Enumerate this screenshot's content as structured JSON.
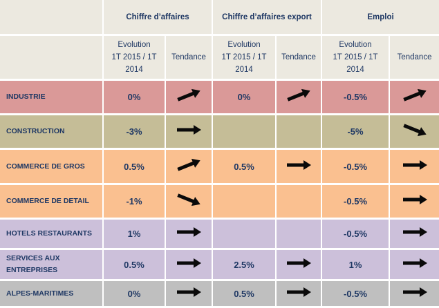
{
  "header": {
    "group1": "Chiffre d’affaires",
    "group2": "Chiffre d’affaires export",
    "group3": "Emploi"
  },
  "subheader": {
    "evolution_l1": "Evolution",
    "evolution_l2": "1T 2015 / 1T",
    "evolution_l3": "2014",
    "tendance": "Tendance"
  },
  "rows": [
    {
      "label": "INDUSTRIE",
      "ca": "0%",
      "ca_trend": "up",
      "export": "0%",
      "export_trend": "up",
      "emploi": "-0.5%",
      "emploi_trend": "up"
    },
    {
      "label": "CONSTRUCTION",
      "ca": "-3%",
      "ca_trend": "flat",
      "export": "",
      "export_trend": "none",
      "emploi": "-5%",
      "emploi_trend": "down"
    },
    {
      "label": "COMMERCE DE GROS",
      "ca": "0.5%",
      "ca_trend": "up",
      "export": "0.5%",
      "export_trend": "flat",
      "emploi": "-0.5%",
      "emploi_trend": "flat"
    },
    {
      "label": "COMMERCE DE DETAIL",
      "ca": "-1%",
      "ca_trend": "down",
      "export": "",
      "export_trend": "none",
      "emploi": "-0.5%",
      "emploi_trend": "flat"
    },
    {
      "label": "HOTELS RESTAURANTS",
      "ca": "1%",
      "ca_trend": "flat",
      "export": "",
      "export_trend": "none",
      "emploi": "-0.5%",
      "emploi_trend": "flat"
    },
    {
      "label_l1": "SERVICES AUX",
      "label_l2": "ENTREPRISES",
      "ca": "0.5%",
      "ca_trend": "flat",
      "export": "2.5%",
      "export_trend": "flat",
      "emploi": "1%",
      "emploi_trend": "flat"
    },
    {
      "label": "ALPES-MARITIMES",
      "ca": "0%",
      "ca_trend": "flat",
      "export": "0.5%",
      "export_trend": "flat",
      "emploi": "-0.5%",
      "emploi_trend": "flat"
    }
  ],
  "colors": {
    "header_bg": "#ece9e0",
    "text": "#1f3864",
    "industrie": "#da9998",
    "construction": "#c5bd97",
    "commerce": "#fac090",
    "hotels_services": "#ccc0da",
    "alpes": "#bfbfbf"
  },
  "icons": {
    "up": "arrow-up-right-icon",
    "flat": "arrow-right-icon",
    "down": "arrow-down-right-icon"
  }
}
